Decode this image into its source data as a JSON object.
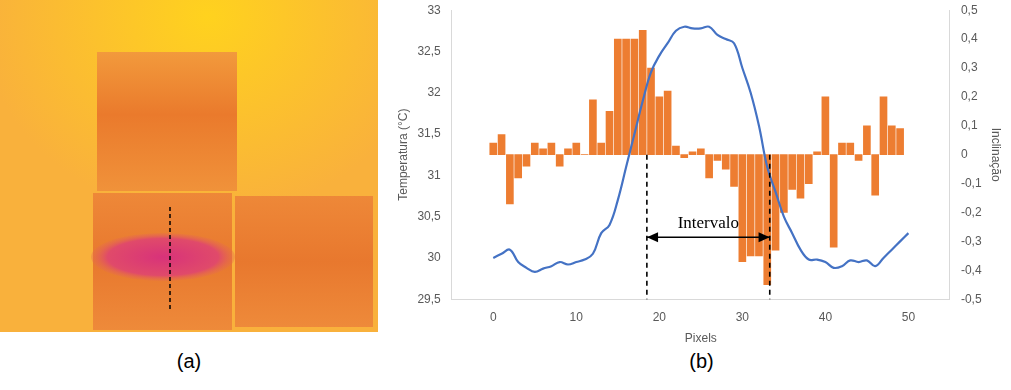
{
  "image": {
    "caption": "(a)"
  },
  "chart_data": {
    "type": "line",
    "caption": "(b)",
    "x_label": "Pixels",
    "y_label": "Temperatura (°C)",
    "y2_label": "Inclinação",
    "xlim": [
      0,
      50
    ],
    "xticks": [
      0,
      10,
      20,
      30,
      40,
      50
    ],
    "ylim": [
      29.5,
      33
    ],
    "yticks": [
      {
        "value": 29.5,
        "label": "29,5"
      },
      30,
      {
        "value": 30.5,
        "label": "30,5"
      },
      31,
      {
        "value": 31.5,
        "label": "31,5"
      },
      32,
      {
        "value": 32.5,
        "label": "32,5"
      },
      33
    ],
    "y2lim": [
      -0.5,
      0.5
    ],
    "y2ticks": [
      {
        "value": -0.5,
        "label": "-0,5"
      },
      {
        "value": -0.4,
        "label": "-0,4"
      },
      {
        "value": -0.3,
        "label": "-0,3"
      },
      {
        "value": -0.2,
        "label": "-0,2"
      },
      {
        "value": -0.1,
        "label": "-0,1"
      },
      0,
      {
        "value": 0.1,
        "label": "0,1"
      },
      {
        "value": 0.2,
        "label": "0,2"
      },
      {
        "value": 0.3,
        "label": "0,3"
      },
      {
        "value": 0.4,
        "label": "0,4"
      },
      {
        "value": 0.5,
        "label": "0,5"
      }
    ],
    "grid": false,
    "series": [
      {
        "type": "line",
        "color": "#4472c4",
        "x": [
          0,
          1,
          2,
          3,
          4,
          5,
          6,
          7,
          8,
          9,
          10,
          11,
          12,
          13,
          14,
          15,
          16,
          17,
          18,
          19,
          20,
          21,
          22,
          23,
          24,
          25,
          26,
          27,
          28,
          29,
          30,
          31,
          32,
          33,
          34,
          35,
          36,
          37,
          38,
          39,
          40,
          41,
          42,
          43,
          44,
          45,
          46,
          47,
          48,
          49,
          50
        ],
        "values": [
          30.0,
          30.05,
          30.1,
          29.95,
          29.88,
          29.83,
          29.87,
          29.9,
          29.95,
          29.92,
          29.95,
          29.98,
          30.05,
          30.3,
          30.4,
          30.7,
          31.1,
          31.5,
          31.9,
          32.25,
          32.45,
          32.6,
          32.75,
          32.8,
          32.78,
          32.78,
          32.8,
          32.7,
          32.65,
          32.6,
          32.3,
          32.0,
          31.6,
          31.1,
          30.8,
          30.5,
          30.3,
          30.1,
          29.98,
          29.98,
          29.95,
          29.88,
          29.9,
          29.97,
          29.95,
          29.97,
          29.9,
          30.0,
          30.1,
          30.2,
          30.3
        ]
      },
      {
        "type": "bar",
        "color": "#ed7d31",
        "axis": "y2",
        "x": [
          0,
          1,
          2,
          3,
          4,
          5,
          6,
          7,
          8,
          9,
          10,
          11,
          12,
          13,
          14,
          15,
          16,
          17,
          18,
          19,
          20,
          21,
          22,
          23,
          24,
          25,
          26,
          27,
          28,
          29,
          30,
          31,
          32,
          33,
          34,
          35,
          36,
          37,
          38,
          39,
          40,
          41,
          42,
          43,
          44,
          45,
          46,
          47,
          48,
          49
        ],
        "values": [
          0.04,
          0.07,
          -0.17,
          -0.08,
          -0.04,
          0.04,
          0.02,
          0.04,
          -0.04,
          0.02,
          0.04,
          0,
          0.19,
          0.04,
          0.15,
          0.4,
          0.4,
          0.4,
          0.43,
          0.3,
          0.2,
          0.22,
          0.03,
          -0.01,
          0.01,
          0.02,
          -0.08,
          -0.02,
          -0.05,
          -0.11,
          -0.37,
          -0.35,
          -0.35,
          -0.45,
          -0.33,
          -0.2,
          -0.12,
          -0.15,
          -0.1,
          0.01,
          0.2,
          -0.32,
          0.04,
          0.04,
          -0.02,
          0.1,
          -0.14,
          0.2,
          0.1,
          0.09
        ]
      }
    ],
    "annotations": [
      {
        "text": "Intervalo",
        "x_start": 18.5,
        "x_end": 33.3,
        "y": 30.25
      }
    ]
  }
}
